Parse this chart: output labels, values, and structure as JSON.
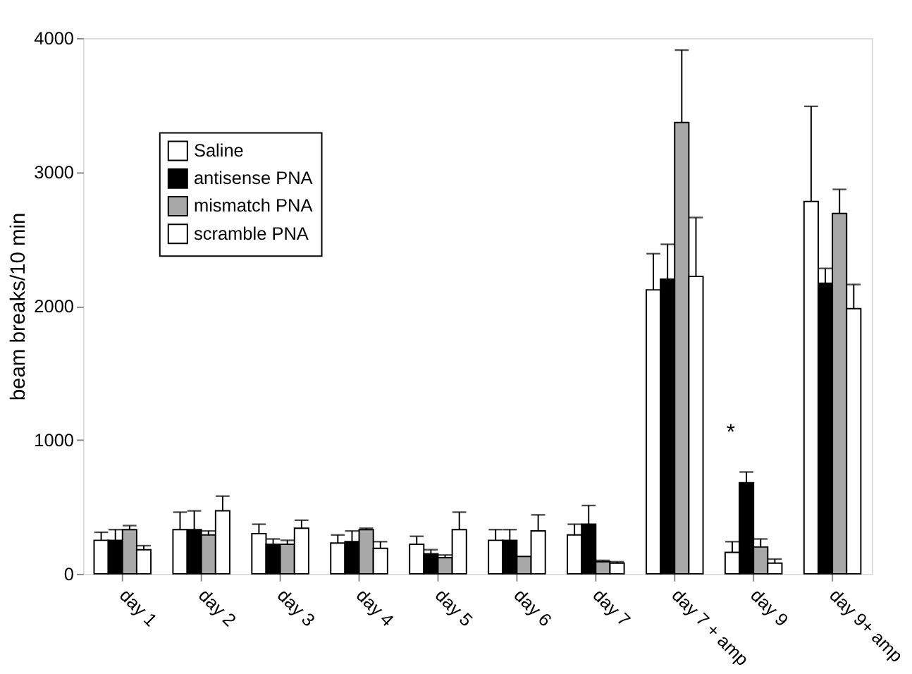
{
  "chart_data": {
    "type": "bar",
    "ylabel": "beam breaks/10 min",
    "categories": [
      "day 1",
      "day 2",
      "day 3",
      "day 4",
      "day 5",
      "day 6",
      "day 7",
      "day 7 + amp",
      "day 9",
      "day 9+ amp"
    ],
    "series": [
      {
        "name": "Saline",
        "color": "#ffffff",
        "values": [
          250,
          330,
          300,
          230,
          220,
          250,
          290,
          2120,
          160,
          2780
        ],
        "errors": [
          [
            250,
            310
          ],
          [
            330,
            460
          ],
          [
            300,
            370
          ],
          [
            230,
            290
          ],
          [
            220,
            280
          ],
          [
            250,
            330
          ],
          [
            290,
            370
          ],
          [
            2120,
            2390
          ],
          [
            160,
            240
          ],
          [
            2780,
            3490
          ]
        ]
      },
      {
        "name": "antisense PNA",
        "color": "#000000",
        "values": [
          250,
          330,
          220,
          240,
          150,
          250,
          370,
          2200,
          680,
          2170
        ],
        "errors": [
          [
            250,
            330
          ],
          [
            330,
            470
          ],
          [
            220,
            260
          ],
          [
            240,
            320
          ],
          [
            150,
            180
          ],
          [
            250,
            330
          ],
          [
            370,
            510
          ],
          [
            2200,
            2460
          ],
          [
            680,
            760
          ],
          [
            2170,
            2280
          ]
        ]
      },
      {
        "name": "mismatch PNA",
        "color": "#a8a8a8",
        "values": [
          330,
          290,
          220,
          330,
          120,
          130,
          90,
          3370,
          200,
          2690
        ],
        "errors": [
          [
            330,
            360
          ],
          [
            290,
            320
          ],
          [
            220,
            250
          ],
          [
            330,
            340
          ],
          [
            120,
            140
          ],
          null,
          [
            90,
            100
          ],
          [
            3370,
            3910
          ],
          [
            200,
            260
          ],
          [
            2690,
            2870
          ]
        ]
      },
      {
        "name": "scramble PNA",
        "color": "#ffffff",
        "values": [
          180,
          470,
          340,
          190,
          330,
          320,
          80,
          2220,
          80,
          1980
        ],
        "errors": [
          [
            180,
            210
          ],
          [
            470,
            580
          ],
          [
            340,
            400
          ],
          [
            190,
            240
          ],
          [
            330,
            460
          ],
          [
            320,
            440
          ],
          [
            80,
            90
          ],
          [
            2220,
            2660
          ],
          [
            80,
            110
          ],
          [
            1980,
            2160
          ]
        ]
      }
    ],
    "ylim": [
      0,
      4000
    ],
    "yticks": [
      0,
      1000,
      2000,
      3000,
      4000
    ],
    "grid": false,
    "legend": "top left",
    "annotations": [
      "*"
    ]
  }
}
